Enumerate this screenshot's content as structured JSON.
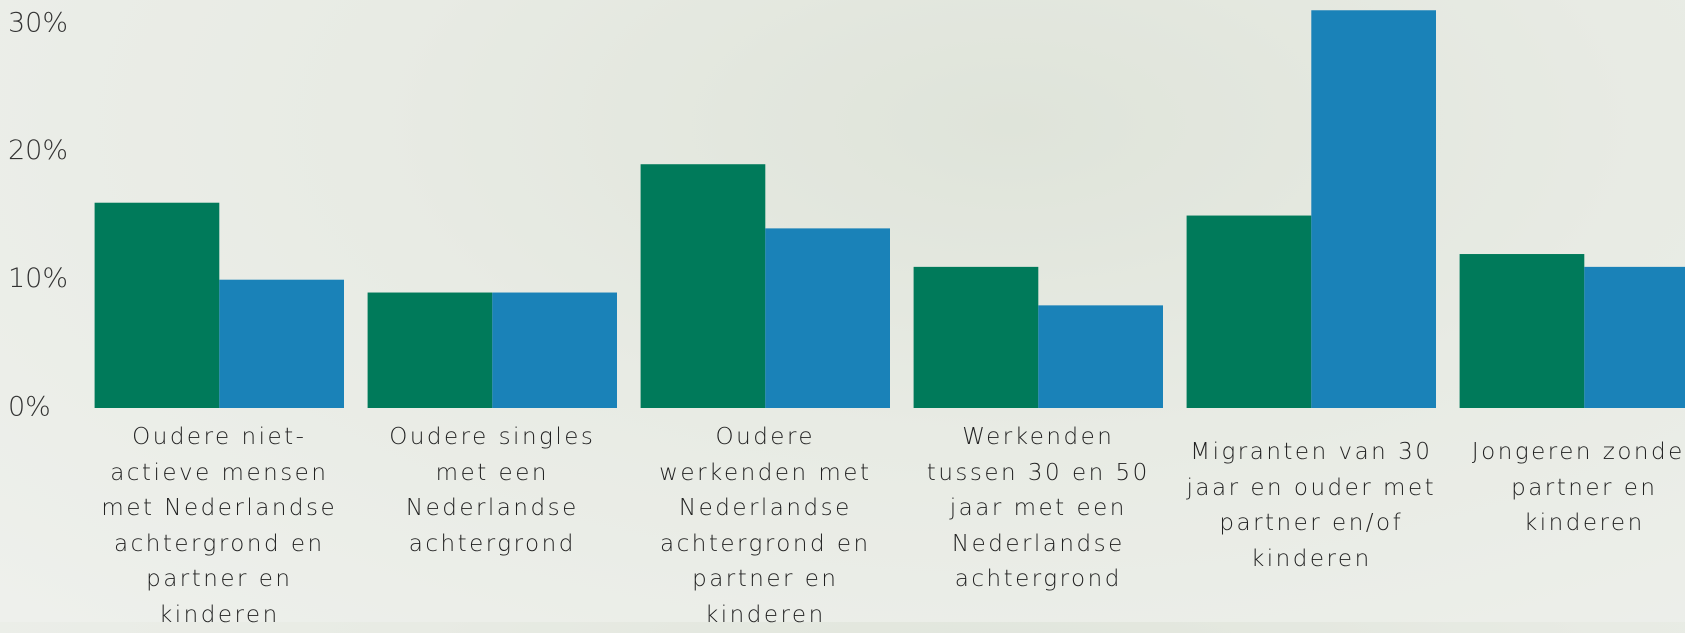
{
  "chart_data": {
    "type": "bar",
    "categories": [
      "Oudere niet-actieve mensen met Nederlandse achtergrond en partner en kinderen",
      "Oudere singles met een Nederlandse achtergrond",
      "Oudere werkenden met Nederlandse achtergrond en partner en kinderen",
      "Werkenden tussen 30 en 50 jaar met een Nederlandse achtergrond",
      "Migranten van 30 jaar en ouder met partner en/of kinderen",
      "Jongeren zonder partner en kinderen"
    ],
    "series": [
      {
        "color": "#007a5a",
        "values": [
          16,
          9,
          19,
          11,
          15,
          12
        ]
      },
      {
        "color": "#1a82b8",
        "values": [
          10,
          9,
          14,
          8,
          31,
          11
        ]
      }
    ],
    "ylim": [
      0,
      31.8
    ],
    "yticks": [
      {
        "value": 0,
        "label": "0%"
      },
      {
        "value": 10,
        "label": "10%"
      },
      {
        "value": 20,
        "label": "20%"
      },
      {
        "value": 30,
        "label": "30%"
      }
    ],
    "grid": false
  }
}
